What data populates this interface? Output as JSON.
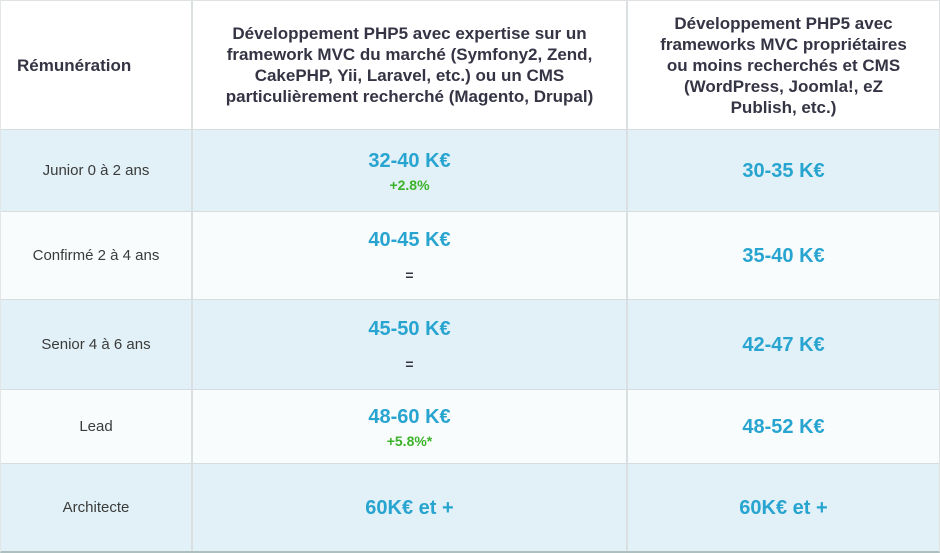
{
  "colors": {
    "value_blue": "#28a4d0",
    "delta_green": "#3cb32b",
    "header_text": "#343444",
    "row_alt_background": "#e1f1f7",
    "row_background": "#f8fcfd"
  },
  "table": {
    "header": {
      "label_col": "Rémunération",
      "market_col": "Développement PHP5 avec expertise sur un framework MVC du marché (Symfony2, Zend, CakePHP, Yii, Laravel, etc.) ou un CMS particulièrement recherché (Magento, Drupal)",
      "proprietary_col": "Développement PHP5 avec frameworks MVC propriétaires ou moins recherchés et CMS (WordPress, Joomla!, eZ Publish, etc.)"
    },
    "rows": [
      {
        "label": "Junior 0 à 2 ans",
        "market": {
          "value": "32-40 K€",
          "delta": "+2.8%"
        },
        "proprietary": {
          "value": "30-35 K€"
        }
      },
      {
        "label": "Confirmé 2 à 4 ans",
        "market": {
          "value": "40-45 K€",
          "delta": "="
        },
        "proprietary": {
          "value": "35-40 K€"
        }
      },
      {
        "label": "Senior 4 à 6 ans",
        "market": {
          "value": "45-50 K€",
          "delta": "="
        },
        "proprietary": {
          "value": "42-47 K€"
        }
      },
      {
        "label": "Lead",
        "market": {
          "value": "48-60 K€",
          "delta": "+5.8%*"
        },
        "proprietary": {
          "value": "48-52 K€"
        }
      },
      {
        "label": "Architecte",
        "market": {
          "value": "60K€ et +"
        },
        "proprietary": {
          "value": "60K€ et +"
        }
      }
    ]
  },
  "chart_data": {
    "type": "table",
    "title": "Rémunération développement PHP5",
    "columns": [
      "Rémunération",
      "Développement PHP5 avec expertise sur un framework MVC du marché (Symfony2, Zend, CakePHP, Yii, Laravel, etc.) ou un CMS particulièrement recherché (Magento, Drupal)",
      "Développement PHP5 avec frameworks MVC propriétaires ou moins recherchés et CMS (WordPress, Joomla!, eZ Publish, etc.)"
    ],
    "rows": [
      [
        "Junior 0 à 2 ans",
        "32-40 K€ (+2.8%)",
        "30-35 K€"
      ],
      [
        "Confirmé 2 à 4 ans",
        "40-45 K€ (=)",
        "35-40 K€"
      ],
      [
        "Senior 4 à 6 ans",
        "45-50 K€ (=)",
        "42-47 K€"
      ],
      [
        "Lead",
        "48-60 K€ (+5.8%*)",
        "48-52 K€"
      ],
      [
        "Architecte",
        "60K€ et +",
        "60K€ et +"
      ]
    ]
  }
}
